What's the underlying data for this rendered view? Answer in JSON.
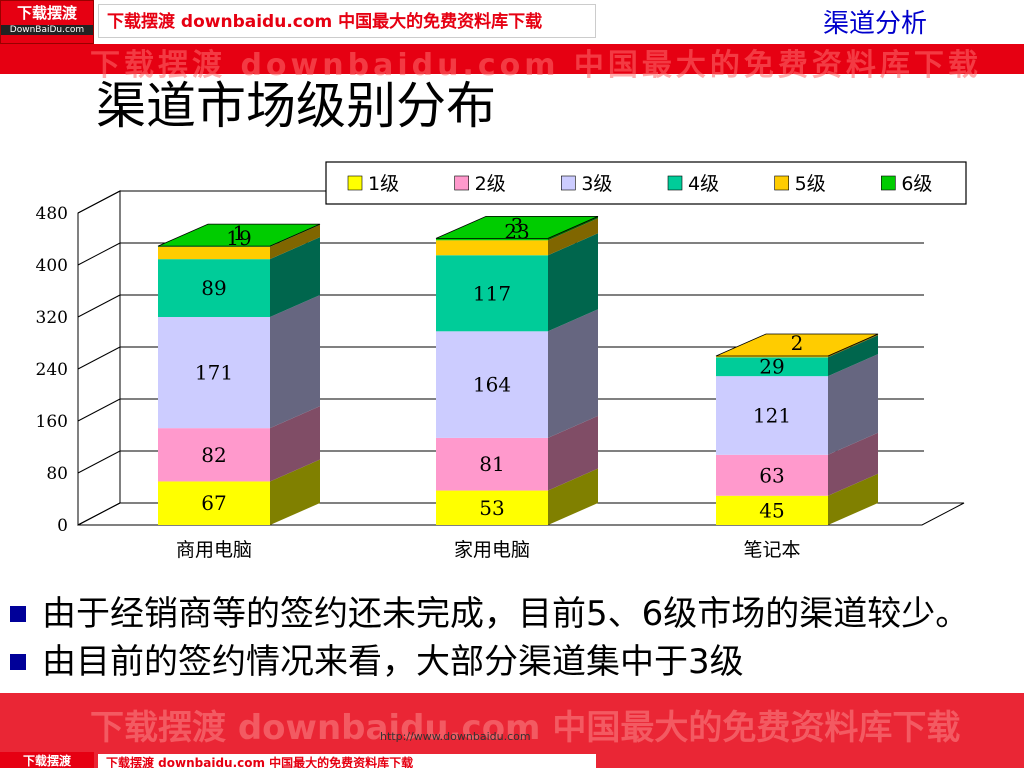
{
  "header": {
    "logo_main": "下载摆渡",
    "logo_sub": "DownBaiDu.com",
    "banner": "下载摆渡 downbaidu.com 中国最大的免费资料库下载",
    "ghost": "下载摆渡 downbaidu.com 中国最大的免费资料库下载",
    "section_label": "渠道分析"
  },
  "page_title": "渠道市场级别分布",
  "chart_data": {
    "type": "bar",
    "stacked": true,
    "three_d": true,
    "categories": [
      "商用电脑",
      "家用电脑",
      "笔记本"
    ],
    "series": [
      {
        "name": "1级",
        "values": [
          67,
          53,
          45
        ],
        "color": "#ffff00"
      },
      {
        "name": "2级",
        "values": [
          82,
          81,
          63
        ],
        "color": "#ff99cc"
      },
      {
        "name": "3级",
        "values": [
          171,
          164,
          121
        ],
        "color": "#ccccff"
      },
      {
        "name": "4级",
        "values": [
          89,
          117,
          29
        ],
        "color": "#00cc99"
      },
      {
        "name": "5级",
        "values": [
          19,
          23,
          2
        ],
        "color": "#ffcc00"
      },
      {
        "name": "6级",
        "values": [
          1,
          3,
          0
        ],
        "color": "#00cc00"
      }
    ],
    "ylim": [
      0,
      480
    ],
    "yticks": [
      0,
      80,
      160,
      240,
      320,
      400,
      480
    ],
    "grid": true,
    "legend_position": "top-right"
  },
  "bullets": [
    "由于经销商等的签约还未完成，目前5、6级市场的渠道较少。",
    "由目前的签约情况来看，大部分渠道集中于3级"
  ],
  "footer": {
    "logo": "下载摆渡",
    "banner": "下载摆渡 downbaidu.com 中国最大的免费资料库下载",
    "ghost": "下载摆渡 downbaidu.com 中国最大的免费资料库下载",
    "url": "http://www.downbaidu.com"
  }
}
